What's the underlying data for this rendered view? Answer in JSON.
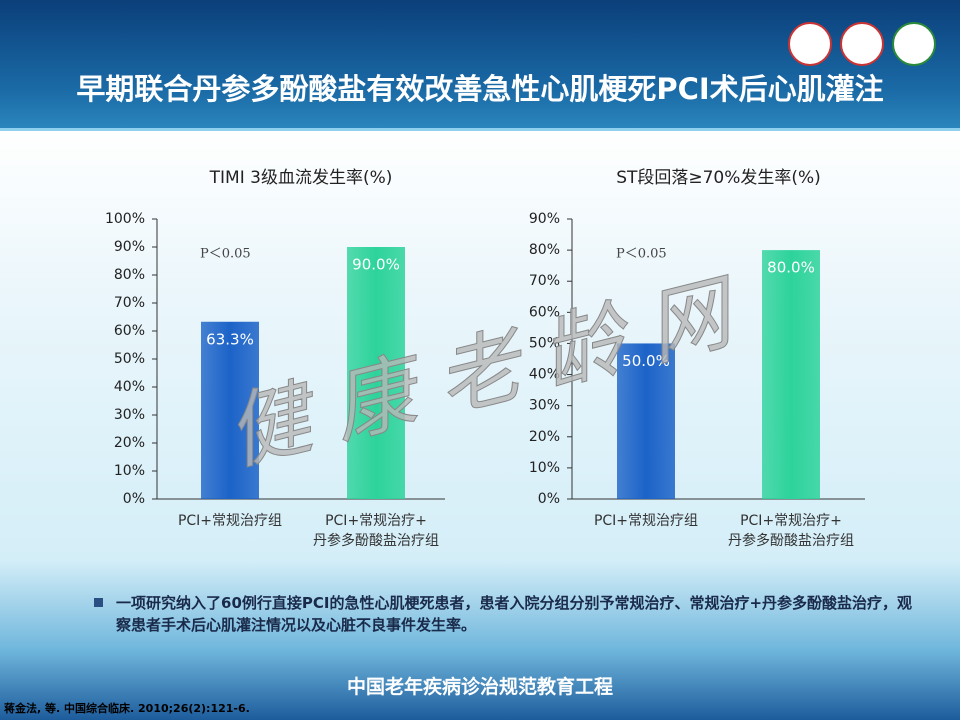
{
  "title": "早期联合丹参多酚酸盐有效改善急性心肌梗死PCI术后心肌灌注",
  "bullet": "一项研究纳入了60例行直接PCI的急性心肌梗死患者，患者入院分组分别予常规治疗、常规治疗+丹参多酚酸盐治疗，观察患者手术后心肌灌注情况以及心脏不良事件发生率。",
  "footer": "中国老年疾病诊治规范教育工程",
  "citation": "蒋金法, 等. 中国综合临床. 2010;26(2):121-6.",
  "watermark": "健 康 老 龄 网",
  "chart_data": [
    {
      "type": "bar",
      "title": "TIMI 3级血流发生率(%)",
      "annotation": "P＜0.05",
      "categories": [
        "PCI+常规治疗组",
        "PCI+常规治疗+\n丹参多酚酸盐治疗组"
      ],
      "values": [
        63.3,
        90.0
      ],
      "value_labels": [
        "63.3%",
        "90.0%"
      ],
      "colors": [
        "#1c63c8",
        "#2dd39b"
      ],
      "ylim": [
        0,
        100
      ],
      "yticks": [
        {
          "value": 0,
          "label": "0%"
        },
        {
          "value": 10,
          "label": "10%"
        },
        {
          "value": 20,
          "label": "20%"
        },
        {
          "value": 30,
          "label": "30%"
        },
        {
          "value": 40,
          "label": "40%"
        },
        {
          "value": 50,
          "label": "50%"
        },
        {
          "value": 60,
          "label": "60%"
        },
        {
          "value": 70,
          "label": "70%"
        },
        {
          "value": 80,
          "label": "80%"
        },
        {
          "value": 90,
          "label": "90%"
        },
        {
          "value": 100,
          "label": "100%"
        }
      ]
    },
    {
      "type": "bar",
      "title": "ST段回落≥70%发生率(%)",
      "annotation": "P＜0.05",
      "categories": [
        "PCI+常规治疗组",
        "PCI+常规治疗+\n丹参多酚酸盐治疗组"
      ],
      "values": [
        50.0,
        80.0
      ],
      "value_labels": [
        "50.0%",
        "80.0%"
      ],
      "colors": [
        "#1c63c8",
        "#2dd39b"
      ],
      "ylim": [
        0,
        90
      ],
      "yticks": [
        {
          "value": 0,
          "label": "0%"
        },
        {
          "value": 10,
          "label": "10%"
        },
        {
          "value": 20,
          "label": "20%"
        },
        {
          "value": 30,
          "label": "30%"
        },
        {
          "value": 40,
          "label": "40%"
        },
        {
          "value": 50,
          "label": "50%"
        },
        {
          "value": 60,
          "label": "60%"
        },
        {
          "value": 70,
          "label": "70%"
        },
        {
          "value": 80,
          "label": "80%"
        },
        {
          "value": 90,
          "label": "90%"
        }
      ]
    }
  ]
}
